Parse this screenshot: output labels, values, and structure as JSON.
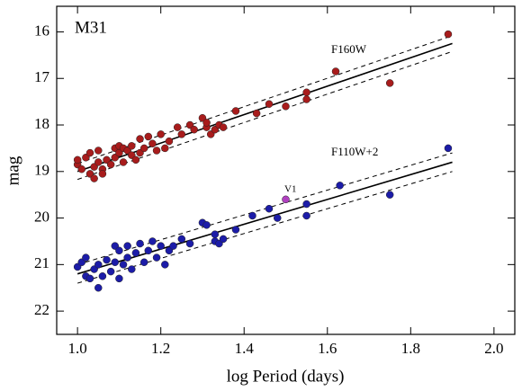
{
  "chart_data": {
    "type": "scatter",
    "x_label": "log Period (days)",
    "y_label": "mag",
    "annotations": [
      "M31",
      "F160W",
      "F110W+2",
      "V1"
    ],
    "xlim": [
      0.95,
      2.05
    ],
    "ylim": [
      22.5,
      15.45
    ],
    "y_inverted": true,
    "xticks": [
      {
        "value": 1.0,
        "label": "1.0"
      },
      {
        "value": 1.2,
        "label": "1.2"
      },
      {
        "value": 1.4,
        "label": "1.4"
      },
      {
        "value": 1.6,
        "label": "1.6"
      },
      {
        "value": 1.8,
        "label": "1.8"
      },
      {
        "value": 2.0,
        "label": "2.0"
      }
    ],
    "yticks": [
      16,
      17,
      18,
      19,
      20,
      21,
      22
    ],
    "series": [
      {
        "color": "#a81c1c",
        "x": [
          1.0,
          1.0,
          1.01,
          1.02,
          1.03,
          1.03,
          1.04,
          1.04,
          1.05,
          1.05,
          1.06,
          1.06,
          1.07,
          1.08,
          1.09,
          1.09,
          1.1,
          1.1,
          1.11,
          1.11,
          1.12,
          1.13,
          1.13,
          1.14,
          1.15,
          1.15,
          1.16,
          1.17,
          1.18,
          1.19,
          1.2,
          1.21,
          1.22,
          1.24,
          1.25,
          1.27,
          1.28,
          1.3,
          1.31,
          1.31,
          1.32,
          1.33,
          1.34,
          1.35,
          1.38,
          1.43,
          1.46,
          1.5,
          1.55,
          1.55,
          1.62,
          1.75,
          1.89
        ],
        "values": [
          18.85,
          18.75,
          18.95,
          18.7,
          18.6,
          19.05,
          18.9,
          19.15,
          18.8,
          18.55,
          18.95,
          19.05,
          18.75,
          18.85,
          18.7,
          18.5,
          18.45,
          18.6,
          18.5,
          18.8,
          18.55,
          18.65,
          18.45,
          18.75,
          18.3,
          18.6,
          18.5,
          18.25,
          18.4,
          18.55,
          18.2,
          18.5,
          18.35,
          18.05,
          18.2,
          18.0,
          18.1,
          17.85,
          18.05,
          17.95,
          18.2,
          18.1,
          18.0,
          18.05,
          17.7,
          17.75,
          17.55,
          17.6,
          17.3,
          17.45,
          16.85,
          17.1,
          16.05
        ]
      },
      {
        "color": "#1c1ca8",
        "x": [
          1.0,
          1.01,
          1.02,
          1.02,
          1.03,
          1.04,
          1.05,
          1.05,
          1.06,
          1.07,
          1.08,
          1.09,
          1.09,
          1.1,
          1.1,
          1.11,
          1.12,
          1.12,
          1.13,
          1.14,
          1.15,
          1.16,
          1.17,
          1.18,
          1.19,
          1.2,
          1.21,
          1.22,
          1.23,
          1.25,
          1.27,
          1.3,
          1.31,
          1.33,
          1.33,
          1.34,
          1.35,
          1.38,
          1.42,
          1.46,
          1.48,
          1.55,
          1.55,
          1.63,
          1.75,
          1.89
        ],
        "values": [
          21.05,
          20.95,
          21.25,
          20.85,
          21.3,
          21.1,
          21.0,
          21.5,
          21.25,
          20.9,
          21.15,
          20.6,
          20.95,
          20.7,
          21.3,
          21.0,
          20.85,
          20.6,
          21.1,
          20.75,
          20.55,
          20.95,
          20.7,
          20.5,
          20.85,
          20.6,
          21.0,
          20.7,
          20.6,
          20.45,
          20.55,
          20.1,
          20.15,
          20.5,
          20.35,
          20.55,
          20.45,
          20.25,
          19.95,
          19.8,
          20.0,
          19.7,
          19.95,
          19.3,
          19.5,
          18.5
        ]
      },
      {
        "color": "#b040c0",
        "x": [
          1.5
        ],
        "values": [
          19.6
        ]
      }
    ],
    "fits": [
      {
        "x": [
          1.0,
          1.9
        ],
        "values": [
          19.0,
          16.25
        ],
        "dash": false
      },
      {
        "x": [
          1.0,
          1.9
        ],
        "values": [
          19.17,
          16.42
        ],
        "dash": true
      },
      {
        "x": [
          1.0,
          1.9
        ],
        "values": [
          18.83,
          16.08
        ],
        "dash": true
      },
      {
        "x": [
          1.0,
          1.9
        ],
        "values": [
          21.2,
          18.8
        ],
        "dash": false
      },
      {
        "x": [
          1.0,
          1.9
        ],
        "values": [
          21.4,
          19.0
        ],
        "dash": true
      },
      {
        "x": [
          1.0,
          1.9
        ],
        "values": [
          21.0,
          18.6
        ],
        "dash": true
      }
    ]
  }
}
